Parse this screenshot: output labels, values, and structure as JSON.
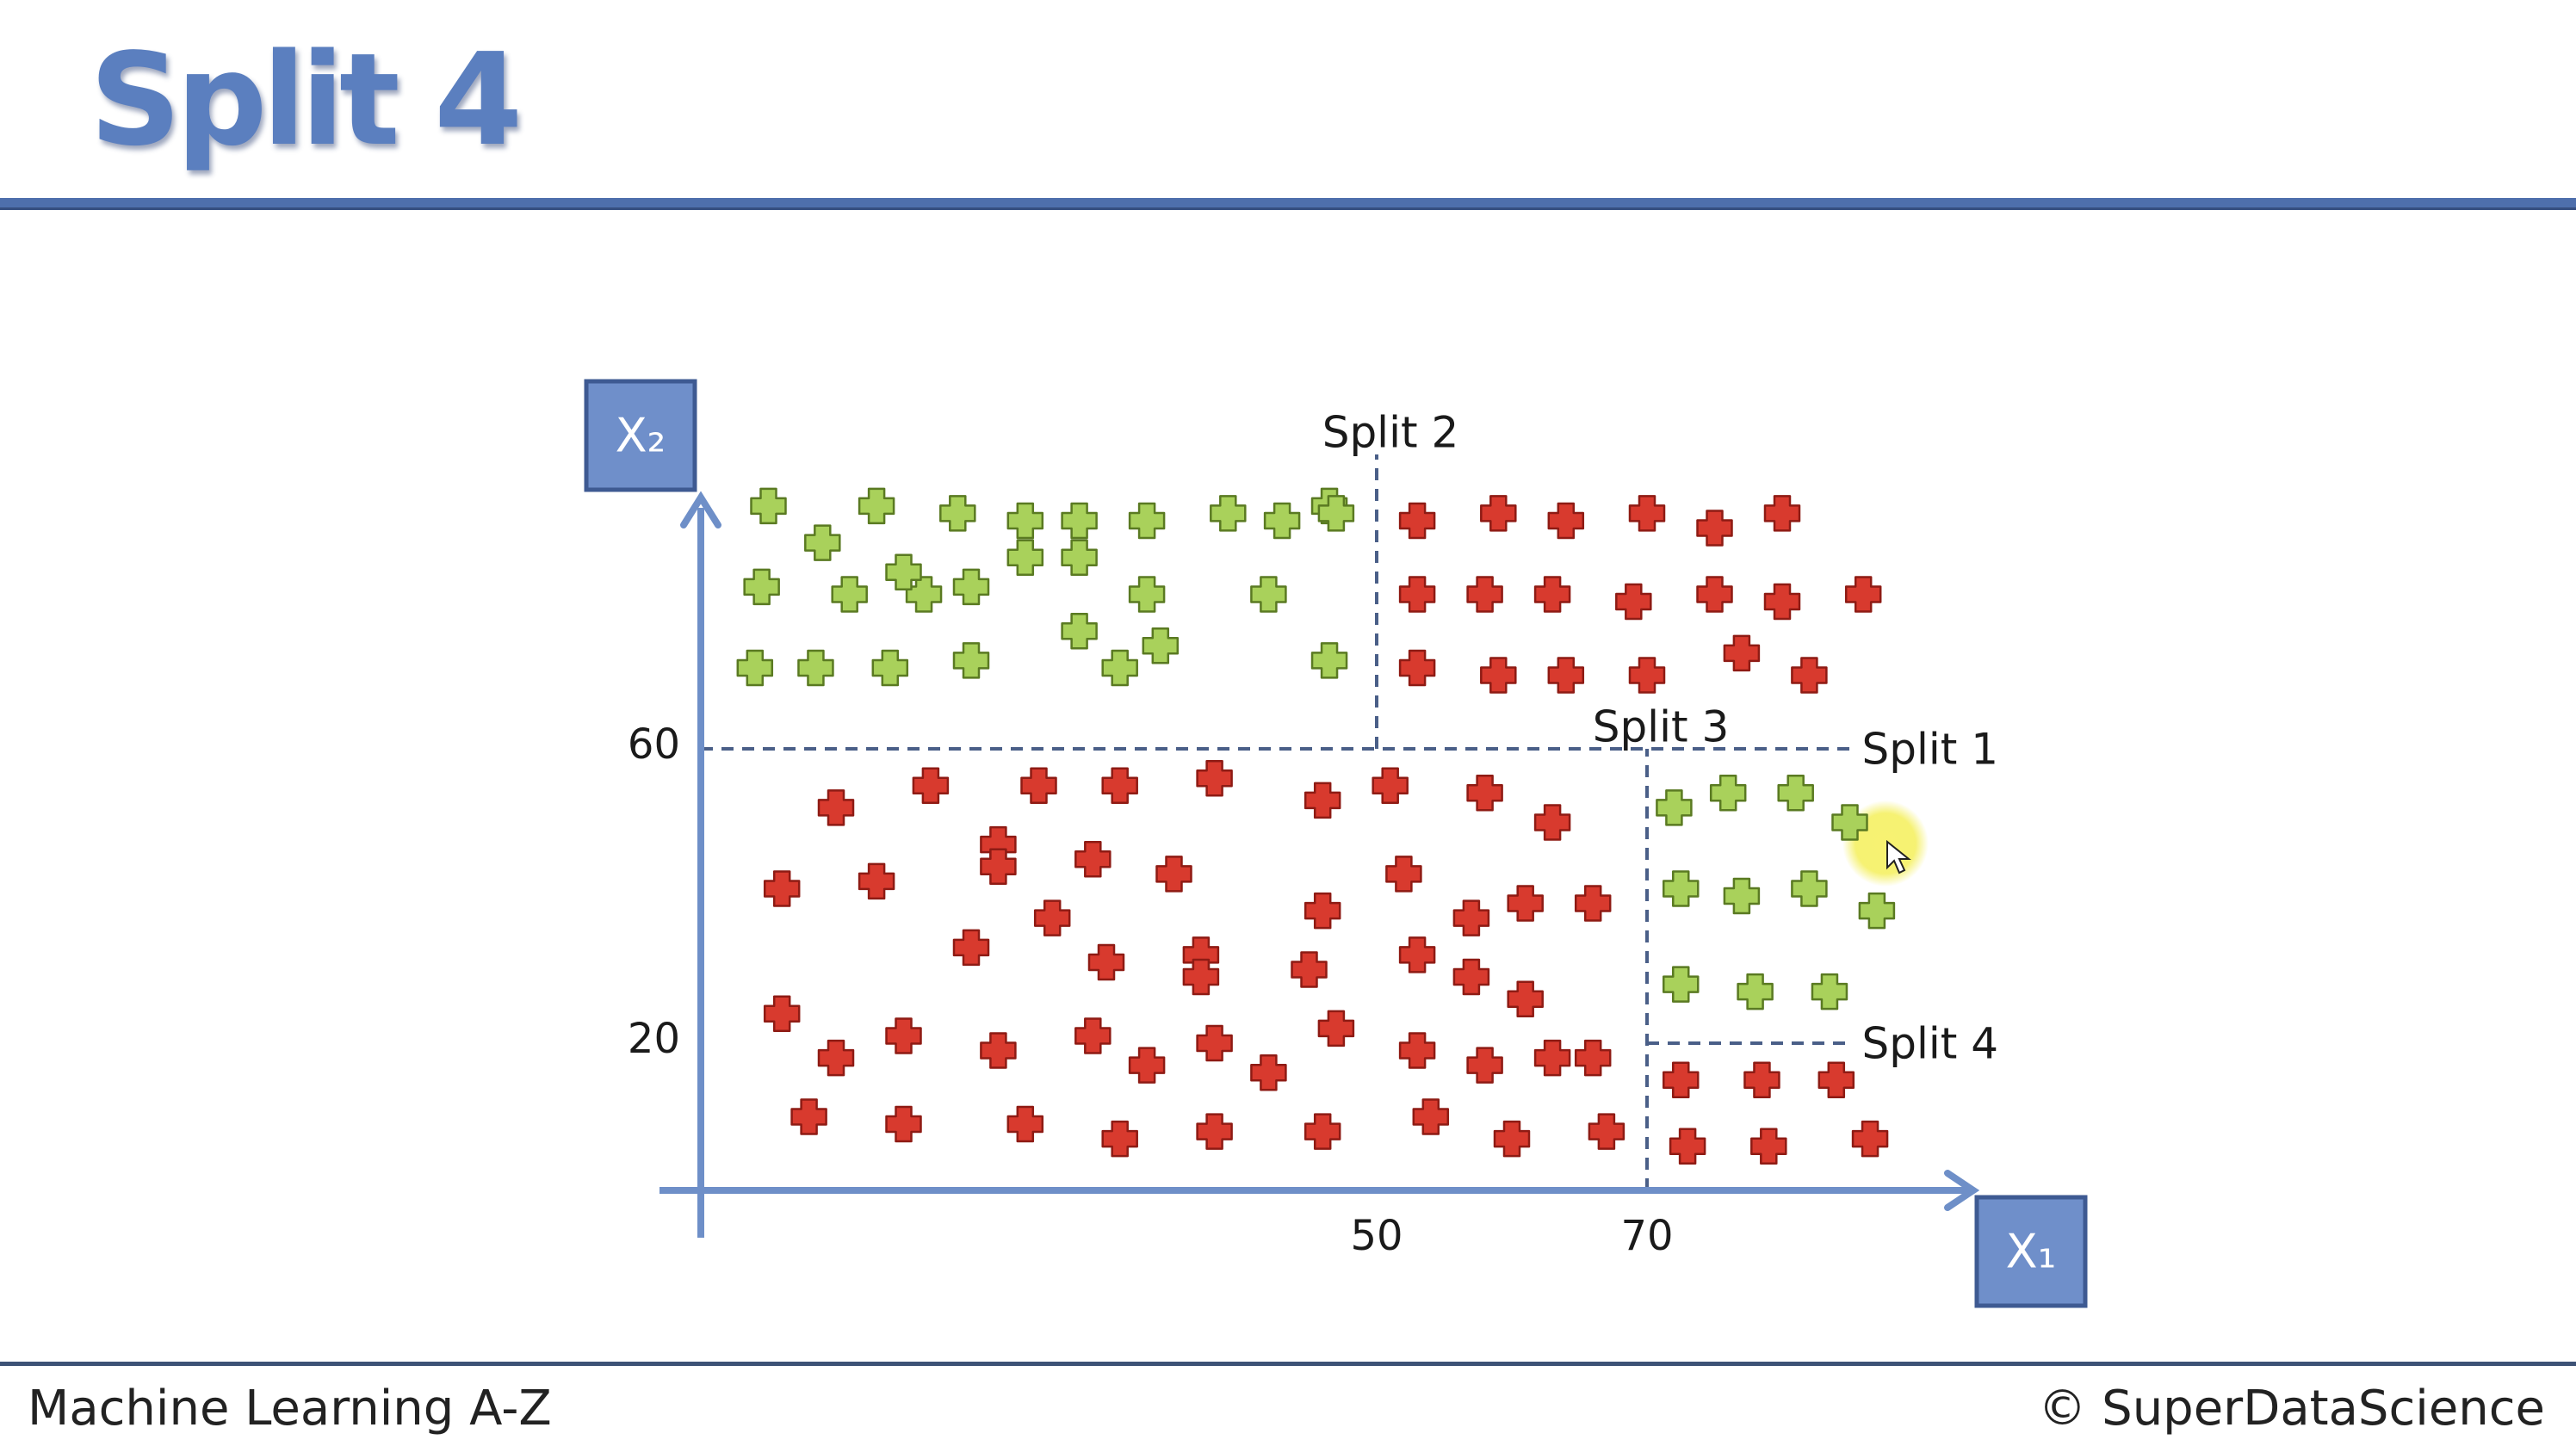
{
  "slide": {
    "title": "Split 4",
    "footer_left": "Machine Learning A-Z",
    "footer_right": "© SuperDataScience"
  },
  "colors": {
    "title": "#5b7fbf",
    "axis": "#6e8fc8",
    "axis_box": "#6f8fca",
    "split_line": "#4a5f88",
    "red_point": "#d83a2e",
    "green_point": "#a9d15b",
    "highlight": "#f4ef5a"
  },
  "chart_data": {
    "type": "scatter",
    "x_axis_label": "X₁",
    "y_axis_label": "X₂",
    "x_ticks": [
      50,
      70
    ],
    "y_ticks": [
      20,
      60
    ],
    "xlim": [
      0,
      85
    ],
    "ylim": [
      0,
      100
    ],
    "splits": [
      {
        "label": "Split 1",
        "orientation": "horizontal",
        "value": 60,
        "from": 0,
        "to": 85
      },
      {
        "label": "Split 2",
        "orientation": "vertical",
        "value": 50,
        "from": 60,
        "to": 100
      },
      {
        "label": "Split 3",
        "orientation": "vertical",
        "value": 70,
        "from": 0,
        "to": 60
      },
      {
        "label": "Split 4",
        "orientation": "horizontal",
        "value": 20,
        "from": 70,
        "to": 85
      }
    ],
    "series": [
      {
        "color": "green",
        "points": [
          [
            5,
            93
          ],
          [
            9,
            88
          ],
          [
            13,
            93
          ],
          [
            16.5,
            81
          ],
          [
            19,
            92
          ],
          [
            24,
            91
          ],
          [
            28,
            91
          ],
          [
            28,
            76
          ],
          [
            33,
            91
          ],
          [
            46.5,
            93
          ],
          [
            33,
            81
          ],
          [
            39,
            92
          ],
          [
            43,
            91
          ],
          [
            47,
            92
          ],
          [
            4.5,
            82
          ],
          [
            11,
            81
          ],
          [
            15,
            84
          ],
          [
            20,
            82
          ],
          [
            24,
            86
          ],
          [
            28,
            86
          ],
          [
            34,
            74
          ],
          [
            42,
            81
          ],
          [
            4,
            71
          ],
          [
            8.5,
            71
          ],
          [
            14,
            71
          ],
          [
            20,
            72
          ],
          [
            31,
            71
          ],
          [
            46.5,
            72
          ],
          [
            72,
            52
          ],
          [
            76,
            54
          ],
          [
            81,
            54
          ],
          [
            85,
            50
          ],
          [
            72.5,
            41
          ],
          [
            77,
            40
          ],
          [
            82,
            41
          ],
          [
            87,
            38
          ],
          [
            72.5,
            28
          ],
          [
            78,
            27
          ],
          [
            83.5,
            27
          ]
        ]
      },
      {
        "color": "red",
        "points": [
          [
            53,
            91
          ],
          [
            59,
            92
          ],
          [
            64,
            91
          ],
          [
            70,
            92
          ],
          [
            75,
            90
          ],
          [
            80,
            92
          ],
          [
            53,
            81
          ],
          [
            58,
            81
          ],
          [
            63,
            81
          ],
          [
            69,
            80
          ],
          [
            75,
            81
          ],
          [
            80,
            80
          ],
          [
            86,
            81
          ],
          [
            53,
            71
          ],
          [
            59,
            70
          ],
          [
            64,
            70
          ],
          [
            70,
            70
          ],
          [
            77,
            73
          ],
          [
            82,
            70
          ],
          [
            10,
            52
          ],
          [
            17,
            55
          ],
          [
            22,
            47
          ],
          [
            25,
            55
          ],
          [
            31,
            55
          ],
          [
            38,
            56
          ],
          [
            46,
            53
          ],
          [
            51,
            55
          ],
          [
            58,
            54
          ],
          [
            63,
            50
          ],
          [
            6,
            41
          ],
          [
            13,
            42
          ],
          [
            22,
            44
          ],
          [
            29,
            45
          ],
          [
            26,
            37
          ],
          [
            35,
            43
          ],
          [
            46,
            38
          ],
          [
            52,
            43
          ],
          [
            57,
            37
          ],
          [
            61,
            39
          ],
          [
            66,
            39
          ],
          [
            20,
            33
          ],
          [
            30,
            31
          ],
          [
            37,
            32
          ],
          [
            37,
            29
          ],
          [
            45,
            30
          ],
          [
            53,
            32
          ],
          [
            57,
            29
          ],
          [
            61,
            26
          ],
          [
            6,
            24
          ],
          [
            10,
            18
          ],
          [
            15,
            21
          ],
          [
            22,
            19
          ],
          [
            29,
            21
          ],
          [
            33,
            17
          ],
          [
            38,
            20
          ],
          [
            42,
            16
          ],
          [
            47,
            22
          ],
          [
            53,
            19
          ],
          [
            58,
            17
          ],
          [
            63,
            18
          ],
          [
            66,
            18
          ],
          [
            8,
            10
          ],
          [
            15,
            9
          ],
          [
            24,
            9
          ],
          [
            31,
            7
          ],
          [
            38,
            8
          ],
          [
            46,
            8
          ],
          [
            54,
            10
          ],
          [
            60,
            7
          ],
          [
            67,
            8
          ],
          [
            72.5,
            15
          ],
          [
            78.5,
            15
          ],
          [
            84,
            15
          ],
          [
            73,
            6
          ],
          [
            79,
            6
          ],
          [
            86.5,
            7
          ]
        ]
      }
    ]
  }
}
